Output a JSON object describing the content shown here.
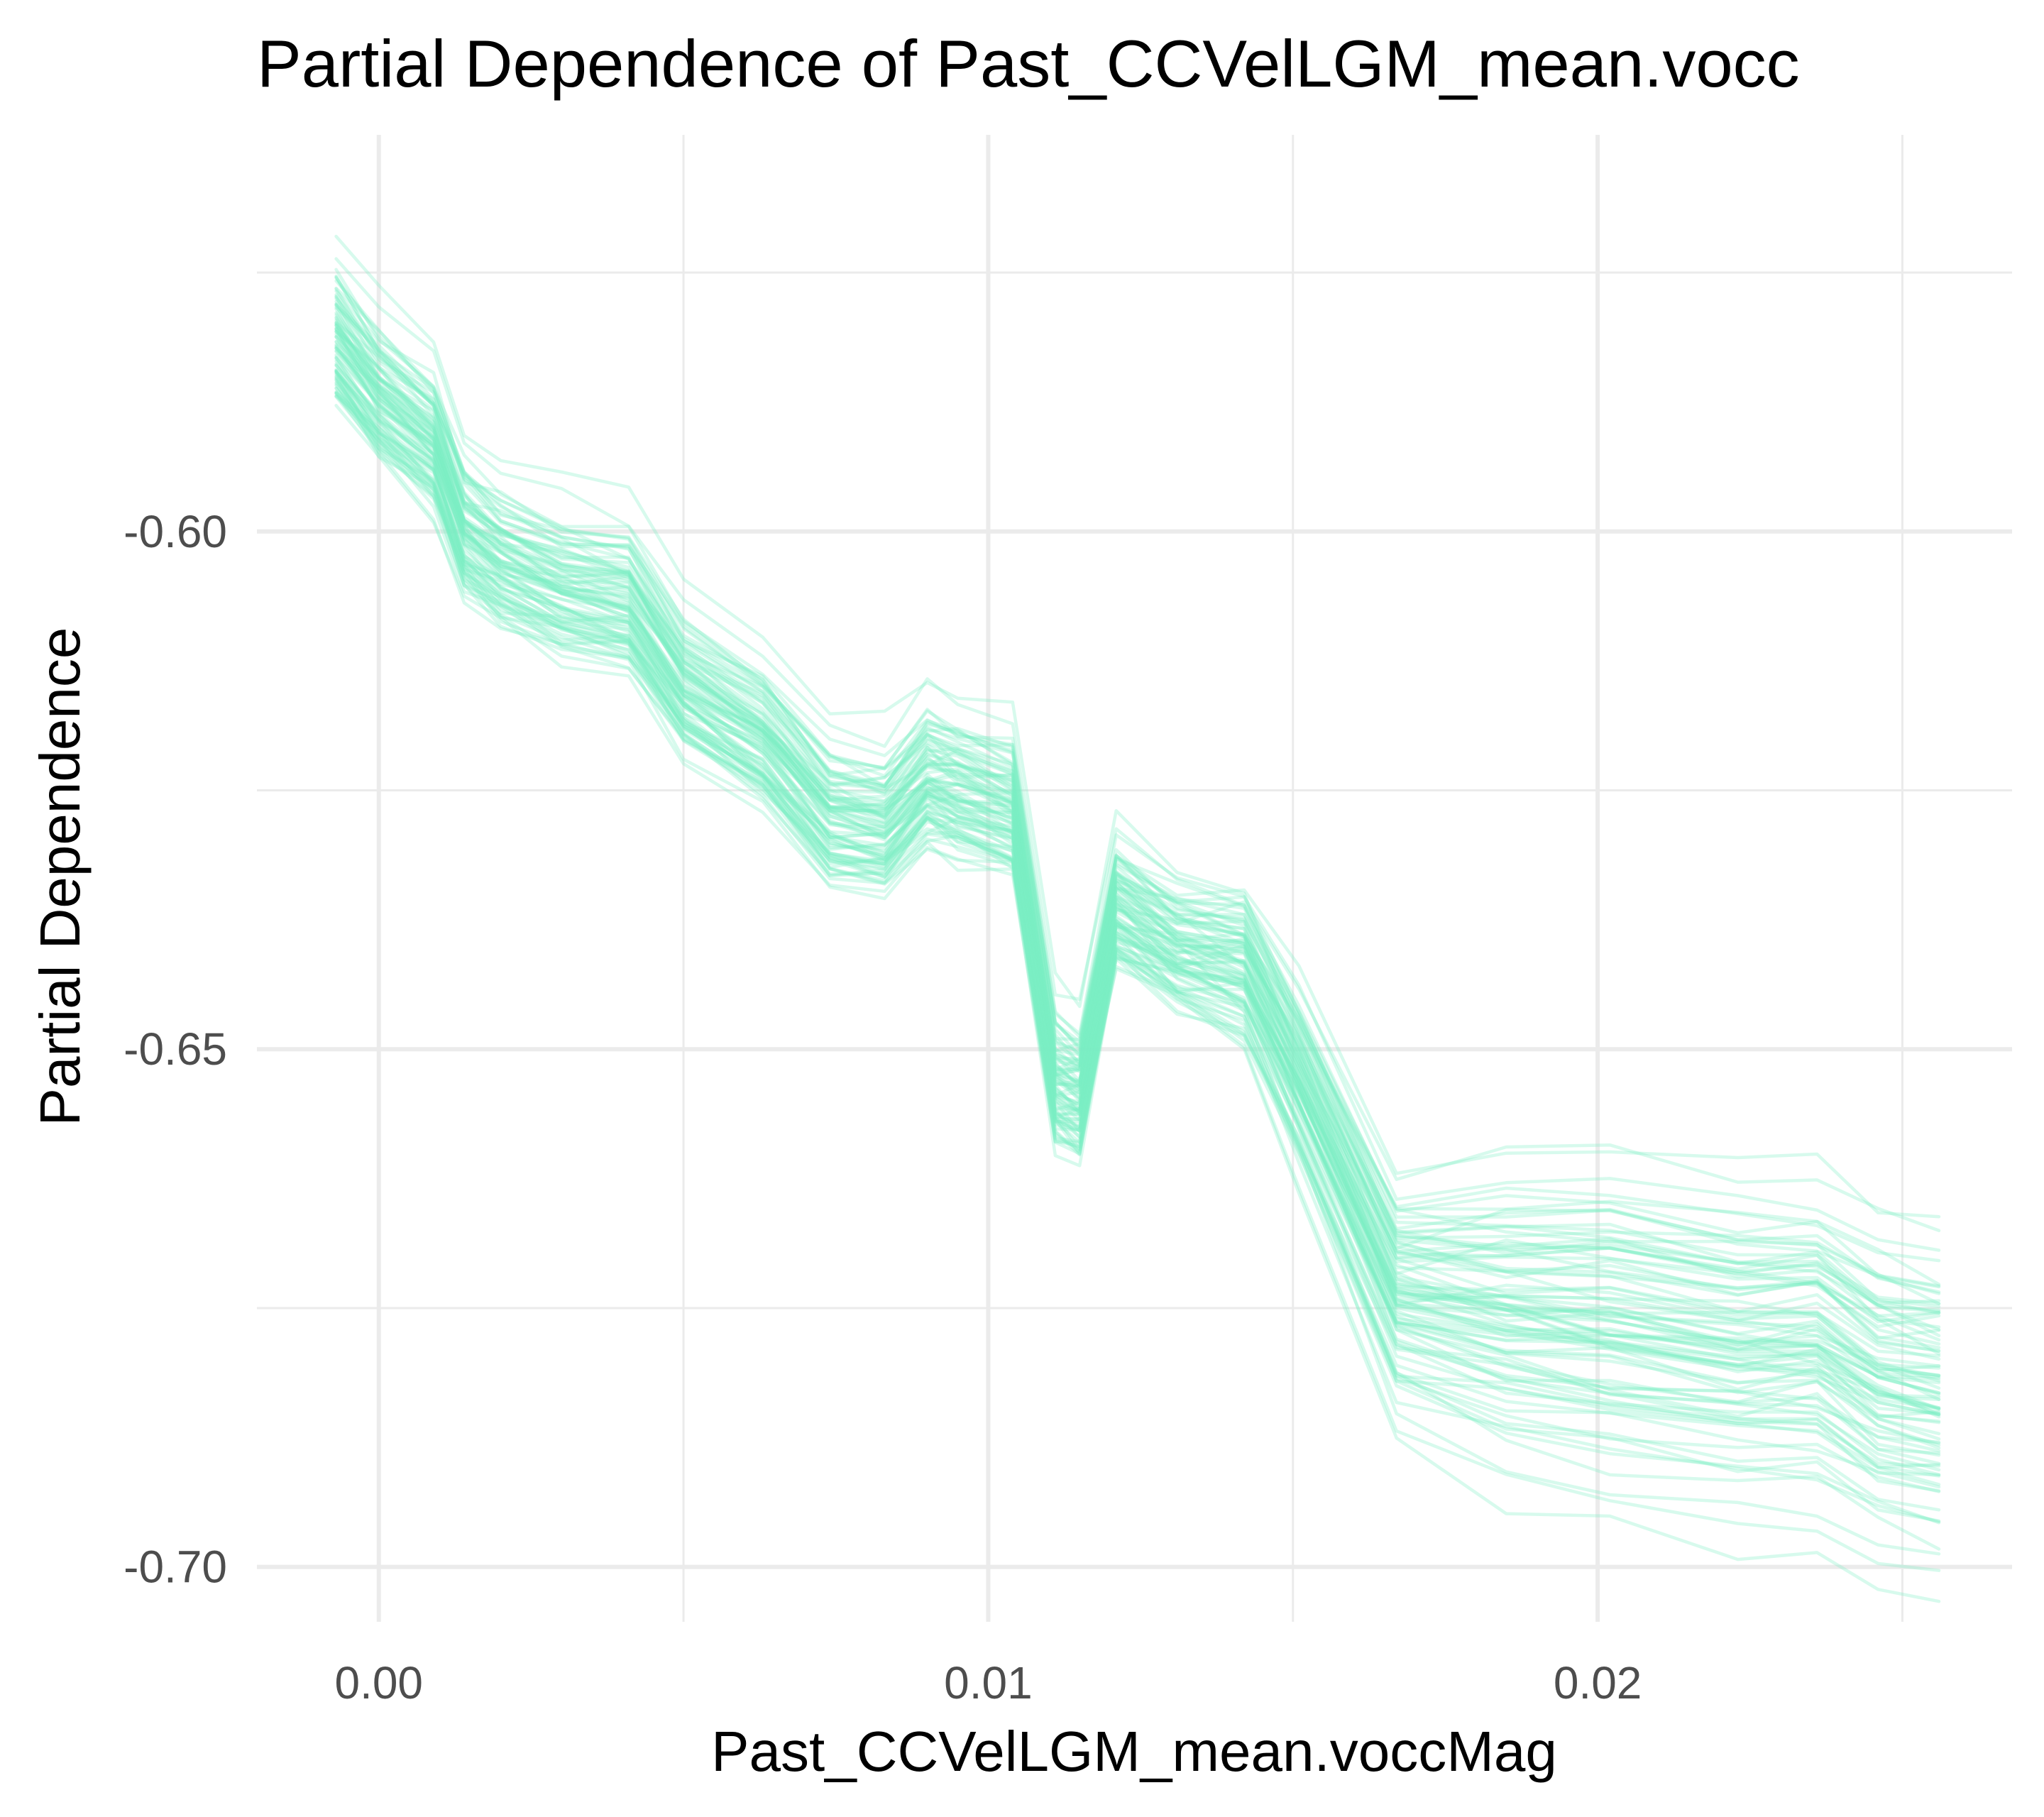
{
  "chart_data": {
    "type": "line",
    "title": "Partial Dependence of Past_CCVelLGM_mean.vocc",
    "xlabel": "Past_CCVelLGM_mean.voccMag",
    "ylabel": "Partial Dependence",
    "xlim": [
      -0.002,
      0.0268
    ],
    "ylim": [
      -0.7053,
      -0.5617
    ],
    "x_ticks": [
      0.0,
      0.01,
      0.02
    ],
    "x_tick_labels": [
      "0.00",
      "0.01",
      "0.02"
    ],
    "x_minor_ticks": [
      0.005,
      0.015,
      0.025
    ],
    "y_ticks": [
      -0.6,
      -0.65,
      -0.7
    ],
    "y_tick_labels": [
      "-0.60",
      "-0.65",
      "-0.70"
    ],
    "y_minor_ticks": [
      -0.575,
      -0.625,
      -0.675
    ],
    "grid": true,
    "legend": "none",
    "line_color": "#7beec5",
    "line_opacity": 0.3,
    "series_count": 90,
    "x": [
      -0.0007,
      0.0,
      0.0009,
      0.0014,
      0.002,
      0.003,
      0.0041,
      0.005,
      0.0063,
      0.0074,
      0.0083,
      0.009,
      0.0095,
      0.0104,
      0.0111,
      0.0115,
      0.0121,
      0.0131,
      0.0142,
      0.0151,
      0.0167,
      0.0185,
      0.0202,
      0.0223,
      0.0236,
      0.0246,
      0.0256
    ],
    "median_curve": [
      -0.5815,
      -0.587,
      -0.5915,
      -0.6,
      -0.603,
      -0.6055,
      -0.607,
      -0.615,
      -0.62,
      -0.6275,
      -0.6285,
      -0.624,
      -0.625,
      -0.627,
      -0.6535,
      -0.6545,
      -0.6365,
      -0.6405,
      -0.6425,
      -0.6535,
      -0.6745,
      -0.6765,
      -0.6775,
      -0.6795,
      -0.6795,
      -0.6835,
      -0.6845
    ],
    "spread_early": 0.0095,
    "spread_late": 0.017
  }
}
